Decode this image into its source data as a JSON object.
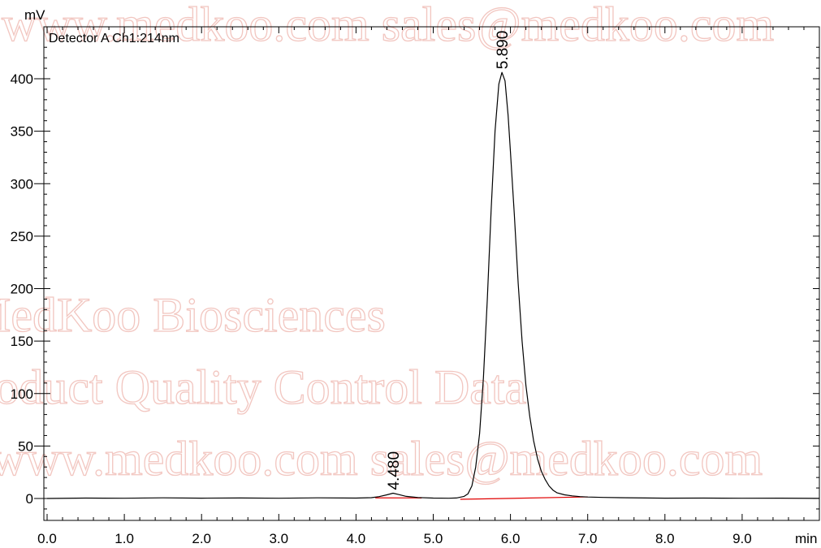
{
  "watermark": {
    "line1": "www.medkoo.com    sales@medkoo.com",
    "line2": "MedKoo Biosciences",
    "line3": "Product Quality Control Data",
    "line4": "www.medkoo.com    sales@medkoo.com",
    "color": "#f2c6c0"
  },
  "chart_data": {
    "type": "line",
    "title": "",
    "detector_label": "Detector A Ch1:214nm",
    "y_unit": "mV",
    "x_unit": "min",
    "xlim": [
      0,
      10
    ],
    "ylim": [
      -20,
      445
    ],
    "x_ticks": [
      {
        "value": 0,
        "label": "0.0"
      },
      {
        "value": 1,
        "label": "1.0"
      },
      {
        "value": 2,
        "label": "2.0"
      },
      {
        "value": 3,
        "label": "3.0"
      },
      {
        "value": 4,
        "label": "4.0"
      },
      {
        "value": 5,
        "label": "5.0"
      },
      {
        "value": 6,
        "label": "6.0"
      },
      {
        "value": 7,
        "label": "7.0"
      },
      {
        "value": 8,
        "label": "8.0"
      },
      {
        "value": 9,
        "label": "9.0"
      }
    ],
    "y_ticks": [
      {
        "value": 0,
        "label": "0"
      },
      {
        "value": 50,
        "label": "50"
      },
      {
        "value": 100,
        "label": "100"
      },
      {
        "value": 150,
        "label": "150"
      },
      {
        "value": 200,
        "label": "200"
      },
      {
        "value": 250,
        "label": "250"
      },
      {
        "value": 300,
        "label": "300"
      },
      {
        "value": 350,
        "label": "350"
      },
      {
        "value": 400,
        "label": "400"
      }
    ],
    "peaks": [
      {
        "label": "4.480",
        "x": 4.48,
        "y": 5
      },
      {
        "label": "5.890",
        "x": 5.89,
        "y": 406
      }
    ],
    "series": [
      {
        "color": "#000000",
        "x": [
          0,
          0.5,
          1.0,
          1.5,
          2.0,
          2.5,
          3.0,
          3.5,
          4.0,
          4.2,
          4.3,
          4.4,
          4.48,
          4.55,
          4.65,
          4.8,
          5.0,
          5.2,
          5.3,
          5.4,
          5.45,
          5.5,
          5.55,
          5.6,
          5.65,
          5.7,
          5.75,
          5.8,
          5.85,
          5.89,
          5.93,
          5.97,
          6.0,
          6.05,
          6.1,
          6.15,
          6.2,
          6.25,
          6.3,
          6.35,
          6.4,
          6.45,
          6.5,
          6.55,
          6.6,
          6.7,
          6.8,
          6.9,
          7.0,
          7.2,
          7.5,
          8.0,
          8.5,
          9.0,
          9.5,
          10.0
        ],
        "y": [
          0,
          0.4,
          0.2,
          0.6,
          0.3,
          0.5,
          0.2,
          0.6,
          0.4,
          0.8,
          1.8,
          3.5,
          5,
          3.8,
          2.0,
          0.9,
          0.4,
          0.2,
          0.5,
          2.0,
          4.5,
          12,
          30,
          62,
          115,
          190,
          275,
          350,
          395,
          406,
          398,
          365,
          330,
          270,
          205,
          150,
          108,
          78,
          55,
          38,
          26,
          18,
          12,
          8,
          5.5,
          3.5,
          2.5,
          1.8,
          1.4,
          1.0,
          0.7,
          0.3,
          0.4,
          0.2,
          0.3,
          0.1
        ]
      }
    ],
    "baselines": [
      {
        "color": "#e00000",
        "x": [
          4.25,
          4.85
        ],
        "y": [
          0.6,
          0.5
        ]
      },
      {
        "color": "#e00000",
        "x": [
          5.35,
          7.0
        ],
        "y": [
          -0.8,
          1.5
        ]
      }
    ]
  }
}
